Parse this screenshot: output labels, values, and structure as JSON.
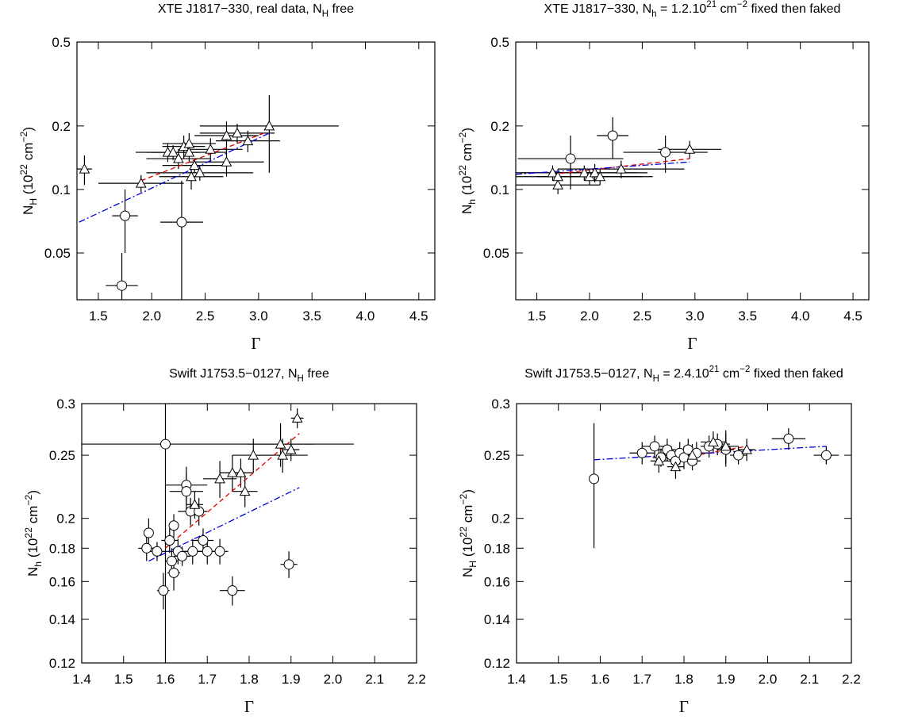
{
  "chart_data": [
    {
      "type": "scatter",
      "title": [
        "XTE J1817−330, real data, N",
        {
          "sub": "H"
        },
        " free"
      ],
      "xlabel": "Γ",
      "ylabel": [
        "N",
        {
          "sub": "H"
        },
        " (10",
        {
          "sup": "22"
        },
        " cm",
        {
          "sup": "−2"
        },
        ")"
      ],
      "xlim": [
        1.3,
        4.65
      ],
      "ylim": [
        0.03,
        0.5
      ],
      "yscale": "log",
      "xticks": [
        1.5,
        {
          "value": 2,
          "label": "2.0"
        },
        2.5,
        {
          "value": 3,
          "label": "3.0"
        },
        3.5,
        {
          "value": 4,
          "label": "4.0"
        },
        4.5
      ],
      "yticks": [
        0.05,
        0.1,
        0.2,
        0.5
      ],
      "series": [
        {
          "marker": "triangle",
          "color": "#000000",
          "x": [
            1.37,
            1.9,
            2.15,
            2.2,
            2.25,
            2.3,
            2.35,
            2.35,
            2.37,
            2.4,
            2.45,
            2.55,
            2.7,
            2.7,
            2.8,
            2.9,
            3.1
          ],
          "y": [
            0.125,
            0.107,
            0.15,
            0.15,
            0.14,
            0.16,
            0.165,
            0.15,
            0.115,
            0.13,
            0.12,
            0.155,
            0.18,
            0.135,
            0.185,
            0.17,
            0.2
          ],
          "xerr": [
            0.07,
            0.4,
            0.3,
            0.25,
            0.3,
            0.2,
            0.25,
            0.35,
            0.3,
            0.3,
            0.5,
            0.3,
            0.3,
            0.35,
            0.35,
            0.3,
            0.65
          ],
          "yerr": [
            0.02,
            0.01,
            0.015,
            0.012,
            0.015,
            0.02,
            0.02,
            0.015,
            0.015,
            0.01,
            0.01,
            0.02,
            0.03,
            0.02,
            0.02,
            0.02,
            0.08
          ]
        },
        {
          "marker": "circle",
          "color": "#000000",
          "x": [
            1.75,
            1.72,
            2.28
          ],
          "y": [
            0.075,
            0.035,
            0.07
          ],
          "xerr": [
            0.12,
            0.15,
            0.2
          ],
          "yerr": [
            0.025,
            0.015,
            0.04
          ]
        }
      ],
      "lines": [
        {
          "color": "#e00000",
          "dash": "dashed",
          "x": [
            1.9,
            3.05
          ],
          "y": [
            0.11,
            0.185
          ]
        },
        {
          "color": "#0000e0",
          "dash": "dashdot",
          "x": [
            1.32,
            3.1
          ],
          "y": [
            0.07,
            0.185
          ]
        }
      ]
    },
    {
      "type": "scatter",
      "title": [
        "XTE J1817−330, N",
        {
          "sub": "h"
        },
        " = 1.2.10",
        {
          "sup": "21"
        },
        " cm",
        {
          "sup": "−2"
        },
        " fixed then faked"
      ],
      "xlabel": "Γ",
      "ylabel": [
        "N",
        {
          "sub": "h"
        },
        " (10",
        {
          "sup": "22"
        },
        " cm",
        {
          "sup": "−2"
        },
        ")"
      ],
      "xlim": [
        1.3,
        4.65
      ],
      "ylim": [
        0.03,
        0.5
      ],
      "yscale": "log",
      "xticks": [
        1.5,
        {
          "value": 2,
          "label": "2.0"
        },
        2.5,
        {
          "value": 3,
          "label": "3.0"
        },
        3.5,
        {
          "value": 4,
          "label": "4.0"
        },
        4.5
      ],
      "yticks": [
        0.05,
        0.1,
        0.2,
        0.5
      ],
      "series": [
        {
          "marker": "triangle",
          "color": "#000000",
          "x": [
            1.65,
            1.7,
            1.7,
            1.95,
            2.0,
            2.05,
            2.1,
            2.3,
            2.95
          ],
          "y": [
            0.12,
            0.105,
            0.115,
            0.12,
            0.115,
            0.12,
            0.115,
            0.125,
            0.155
          ],
          "xerr": [
            0.35,
            0.4,
            0.45,
            0.6,
            0.5,
            0.4,
            0.5,
            0.6,
            0.3
          ],
          "yerr": [
            0.01,
            0.01,
            0.01,
            0.01,
            0.01,
            0.012,
            0.01,
            0.012,
            0.015
          ]
        },
        {
          "marker": "circle",
          "color": "#000000",
          "x": [
            1.82,
            2.22,
            2.72
          ],
          "y": [
            0.14,
            0.18,
            0.15
          ],
          "xerr": [
            0.5,
            0.15,
            0.4
          ],
          "yerr": [
            0.04,
            0.04,
            0.03
          ]
        }
      ],
      "lines": [
        {
          "color": "#e00000",
          "dash": "dashed",
          "x": [
            1.65,
            2.95
          ],
          "y": [
            0.118,
            0.14
          ]
        },
        {
          "color": "#0000e0",
          "dash": "dashdot",
          "x": [
            1.3,
            2.95
          ],
          "y": [
            0.118,
            0.135
          ]
        }
      ]
    },
    {
      "type": "scatter",
      "title": [
        "Swift J1753.5−0127, N",
        {
          "sub": "H"
        },
        " free"
      ],
      "xlabel": "Γ",
      "ylabel": [
        "N",
        {
          "sub": "h"
        },
        " (10",
        {
          "sup": "22"
        },
        " cm",
        {
          "sup": "−2"
        },
        ")"
      ],
      "xlim": [
        1.4,
        2.2
      ],
      "ylim": [
        0.12,
        0.3
      ],
      "yscale": "log",
      "xticks": [
        1.4,
        1.5,
        1.6,
        1.7,
        1.8,
        1.9,
        {
          "value": 2,
          "label": "2.0"
        },
        2.1,
        2.2
      ],
      "yticks": [
        0.12,
        0.14,
        0.16,
        0.18,
        0.2,
        0.25,
        0.3
      ],
      "series": [
        {
          "marker": "circle",
          "color": "#000000",
          "x": [
            1.555,
            1.56,
            1.58,
            1.595,
            1.6,
            1.61,
            1.615,
            1.62,
            1.62,
            1.63,
            1.64,
            1.65,
            1.65,
            1.66,
            1.665,
            1.68,
            1.69,
            1.7,
            1.73,
            1.76,
            1.895
          ],
          "y": [
            0.18,
            0.19,
            0.178,
            0.155,
            0.26,
            0.185,
            0.172,
            0.195,
            0.165,
            0.178,
            0.175,
            0.225,
            0.22,
            0.205,
            0.178,
            0.205,
            0.185,
            0.178,
            0.178,
            0.155,
            0.17
          ],
          "xerr": [
            0.02,
            0.01,
            0.02,
            0.015,
            0.45,
            0.02,
            0.015,
            0.01,
            0.015,
            0.03,
            0.02,
            0.05,
            0.04,
            0.03,
            0.03,
            0.02,
            0.025,
            0.03,
            0.02,
            0.03,
            0.02
          ],
          "yerr": [
            0.008,
            0.01,
            0.006,
            0.01,
            0.14,
            0.008,
            0.008,
            0.008,
            0.01,
            0.008,
            0.006,
            0.015,
            0.015,
            0.01,
            0.008,
            0.01,
            0.008,
            0.008,
            0.008,
            0.008,
            0.008
          ]
        },
        {
          "marker": "triangle",
          "color": "#000000",
          "x": [
            1.67,
            1.73,
            1.76,
            1.78,
            1.79,
            1.81,
            1.875,
            1.88,
            1.9,
            1.915
          ],
          "y": [
            0.21,
            0.23,
            0.235,
            0.235,
            0.22,
            0.25,
            0.26,
            0.25,
            0.255,
            0.285
          ],
          "xerr": [
            0.02,
            0.04,
            0.03,
            0.03,
            0.03,
            0.05,
            0.08,
            0.06,
            0.02,
            0.015
          ],
          "yerr": [
            0.01,
            0.015,
            0.015,
            0.012,
            0.012,
            0.015,
            0.02,
            0.015,
            0.01,
            0.01
          ]
        }
      ],
      "lines": [
        {
          "color": "#e00000",
          "dash": "dashed",
          "x": [
            1.6,
            1.92
          ],
          "y": [
            0.18,
            0.27
          ]
        },
        {
          "color": "#0000e0",
          "dash": "dashdot",
          "x": [
            1.56,
            1.92
          ],
          "y": [
            0.172,
            0.223
          ]
        }
      ]
    },
    {
      "type": "scatter",
      "title": [
        "Swift J1753.5−0127, N",
        {
          "sub": "H"
        },
        " = 2.4.10",
        {
          "sup": "21"
        },
        " cm",
        {
          "sup": "−2"
        },
        " fixed then faked"
      ],
      "xlabel": "Γ",
      "ylabel": [
        "N",
        {
          "sub": "H"
        },
        " (10",
        {
          "sup": "22"
        },
        " cm",
        {
          "sup": "−2"
        },
        ")"
      ],
      "xlim": [
        1.4,
        2.2
      ],
      "ylim": [
        0.12,
        0.3
      ],
      "yscale": "log",
      "xticks": [
        1.4,
        1.5,
        1.6,
        1.7,
        1.8,
        1.9,
        {
          "value": 2,
          "label": "2.0"
        },
        2.1,
        2.2
      ],
      "yticks": [
        0.12,
        0.14,
        0.16,
        0.18,
        0.2,
        0.25,
        0.3
      ],
      "series": [
        {
          "marker": "circle",
          "color": "#000000",
          "x": [
            1.585,
            1.7,
            1.73,
            1.745,
            1.76,
            1.77,
            1.78,
            1.79,
            1.8,
            1.81,
            1.82,
            1.83,
            1.86,
            1.88,
            1.9,
            1.93,
            2.05,
            2.14
          ],
          "y": [
            0.23,
            0.252,
            0.258,
            0.248,
            0.255,
            0.25,
            0.245,
            0.252,
            0.248,
            0.255,
            0.245,
            0.252,
            0.258,
            0.26,
            0.255,
            0.25,
            0.265,
            0.25
          ],
          "xerr": [
            0,
            0.03,
            0.03,
            0.02,
            0.02,
            0.02,
            0.02,
            0.02,
            0.02,
            0.02,
            0.02,
            0.03,
            0.02,
            0.03,
            0.02,
            0.02,
            0.04,
            0.03
          ],
          "yerr": [
            0.05,
            0.01,
            0.01,
            0.008,
            0.01,
            0.008,
            0.008,
            0.01,
            0.01,
            0.01,
            0.008,
            0.01,
            0.01,
            0.01,
            0.015,
            0.008,
            0.01,
            0.008
          ]
        },
        {
          "marker": "triangle",
          "color": "#000000",
          "x": [
            1.74,
            1.78,
            1.82,
            1.87,
            1.9,
            1.95
          ],
          "y": [
            0.245,
            0.24,
            0.25,
            0.262,
            0.258,
            0.255
          ],
          "xerr": [
            0.02,
            0.02,
            0.02,
            0.03,
            0.03,
            0.02
          ],
          "yerr": [
            0.01,
            0.01,
            0.01,
            0.01,
            0.015,
            0.01
          ]
        }
      ],
      "lines": [
        {
          "color": "#e00000",
          "dash": "dashed",
          "x": [
            1.8,
            1.95
          ],
          "y": [
            0.248,
            0.258
          ]
        },
        {
          "color": "#0000e0",
          "dash": "dashdot",
          "x": [
            1.585,
            2.14
          ],
          "y": [
            0.246,
            0.258
          ]
        }
      ]
    }
  ]
}
